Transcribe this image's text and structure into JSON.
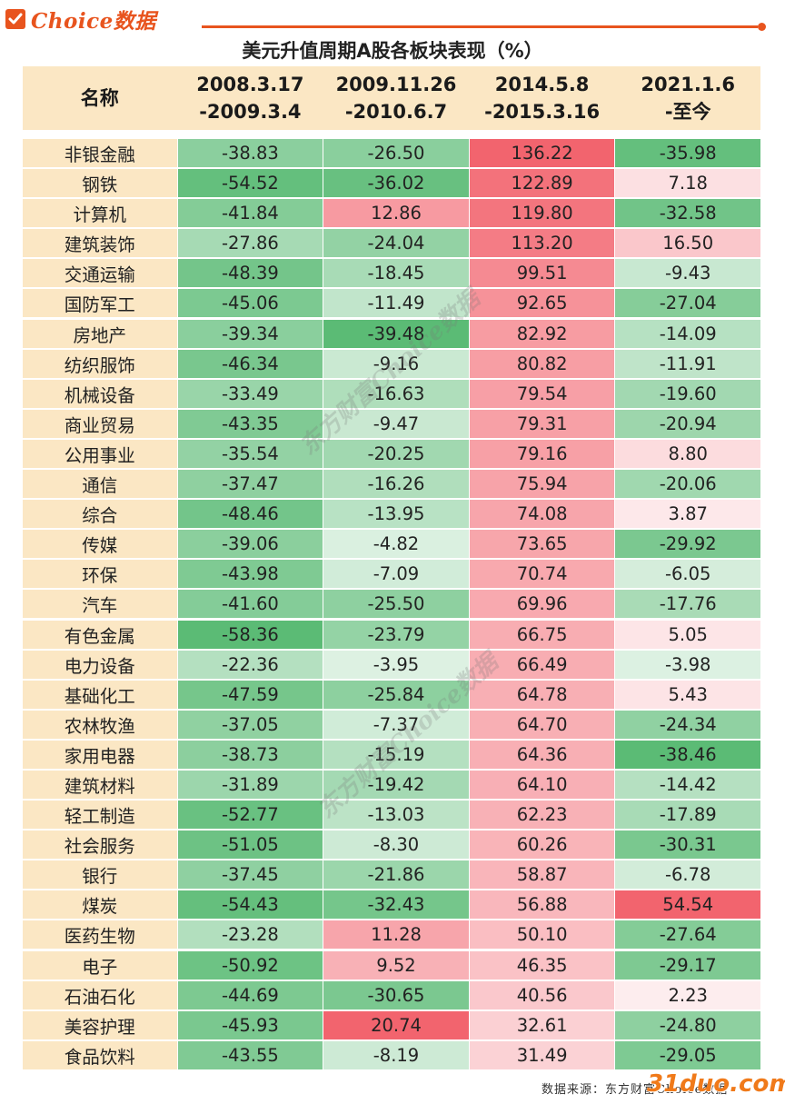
{
  "header": {
    "brand": "Choice数据"
  },
  "chart_data": {
    "type": "table",
    "title": "美元升值周期A股各板块表现（%）",
    "name_header": "名称",
    "periods": [
      {
        "line1": "2008.3.17",
        "line2": "-2009.3.4"
      },
      {
        "line1": "2009.11.26",
        "line2": "-2010.6.7"
      },
      {
        "line1": "2014.5.8",
        "line2": "-2015.3.16"
      },
      {
        "line1": "2021.1.6",
        "line2": "-至今"
      }
    ],
    "rows": [
      {
        "name": "非银金融",
        "values": [
          -38.83,
          -26.5,
          136.22,
          -35.98
        ]
      },
      {
        "name": "钢铁",
        "values": [
          -54.52,
          -36.02,
          122.89,
          7.18
        ]
      },
      {
        "name": "计算机",
        "values": [
          -41.84,
          12.86,
          119.8,
          -32.58
        ]
      },
      {
        "name": "建筑装饰",
        "values": [
          -27.86,
          -24.04,
          113.2,
          16.5
        ]
      },
      {
        "name": "交通运输",
        "values": [
          -48.39,
          -18.45,
          99.51,
          -9.43
        ]
      },
      {
        "name": "国防军工",
        "values": [
          -45.06,
          -11.49,
          92.65,
          -27.04
        ]
      },
      {
        "name": "房地产",
        "values": [
          -39.34,
          -39.48,
          82.92,
          -14.09
        ]
      },
      {
        "name": "纺织服饰",
        "values": [
          -46.34,
          -9.16,
          80.82,
          -11.91
        ]
      },
      {
        "name": "机械设备",
        "values": [
          -33.49,
          -16.63,
          79.54,
          -19.6
        ]
      },
      {
        "name": "商业贸易",
        "values": [
          -43.35,
          -9.47,
          79.31,
          -20.94
        ]
      },
      {
        "name": "公用事业",
        "values": [
          -35.54,
          -20.25,
          79.16,
          8.8
        ]
      },
      {
        "name": "通信",
        "values": [
          -37.47,
          -16.26,
          75.94,
          -20.06
        ]
      },
      {
        "name": "综合",
        "values": [
          -48.46,
          -13.95,
          74.08,
          3.87
        ]
      },
      {
        "name": "传媒",
        "values": [
          -39.06,
          -4.82,
          73.65,
          -29.92
        ]
      },
      {
        "name": "环保",
        "values": [
          -43.98,
          -7.09,
          70.74,
          -6.05
        ]
      },
      {
        "name": "汽车",
        "values": [
          -41.6,
          -25.5,
          69.96,
          -17.76
        ]
      },
      {
        "name": "有色金属",
        "values": [
          -58.36,
          -23.79,
          66.75,
          5.05
        ]
      },
      {
        "name": "电力设备",
        "values": [
          -22.36,
          -3.95,
          66.49,
          -3.98
        ]
      },
      {
        "name": "基础化工",
        "values": [
          -47.59,
          -25.84,
          64.78,
          5.43
        ]
      },
      {
        "name": "农林牧渔",
        "values": [
          -37.05,
          -7.37,
          64.7,
          -24.34
        ]
      },
      {
        "name": "家用电器",
        "values": [
          -38.73,
          -15.19,
          64.36,
          -38.46
        ]
      },
      {
        "name": "建筑材料",
        "values": [
          -31.89,
          -19.42,
          64.1,
          -14.42
        ]
      },
      {
        "name": "轻工制造",
        "values": [
          -52.77,
          -13.03,
          62.23,
          -17.89
        ]
      },
      {
        "name": "社会服务",
        "values": [
          -51.05,
          -8.3,
          60.26,
          -30.31
        ]
      },
      {
        "name": "银行",
        "values": [
          -37.45,
          -21.86,
          58.87,
          -6.78
        ]
      },
      {
        "name": "煤炭",
        "values": [
          -54.43,
          -32.43,
          56.88,
          54.54
        ]
      },
      {
        "name": "医药生物",
        "values": [
          -23.28,
          11.28,
          50.1,
          -27.64
        ]
      },
      {
        "name": "电子",
        "values": [
          -50.92,
          9.52,
          46.35,
          -29.17
        ]
      },
      {
        "name": "石油石化",
        "values": [
          -44.69,
          -30.65,
          40.56,
          2.23
        ]
      },
      {
        "name": "美容护理",
        "values": [
          -45.93,
          20.74,
          32.61,
          -24.8
        ]
      },
      {
        "name": "食品饮料",
        "values": [
          -43.55,
          -8.19,
          31.49,
          -29.05
        ]
      }
    ],
    "colors": {
      "positive": "#f2646e",
      "negative": "#5bbb75",
      "header_bg": "#fbe7c4",
      "accent": "#e8541e"
    }
  },
  "footer": {
    "source": "数据来源：东方财富Choice数据",
    "watermark": "东方财富Choice数据",
    "site_watermark": "31duo.com"
  }
}
